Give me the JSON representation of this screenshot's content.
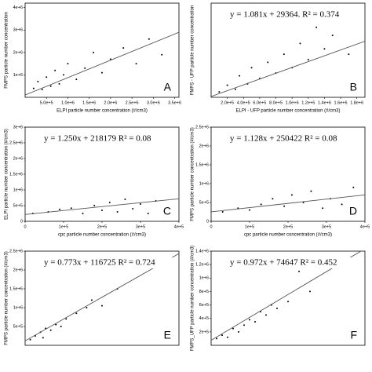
{
  "chart_data": [
    {
      "type": "scatter",
      "annotation": "A",
      "xlabel": "ELPI particle number concentration (#/cm3)",
      "ylabel": "FMPS particle number concentration",
      "x": [
        200000,
        300000,
        400000,
        500000,
        600000,
        700000,
        800000,
        900000,
        1000000,
        1200000,
        1400000,
        1600000,
        1800000,
        2000000,
        2300000,
        2600000,
        2900000,
        3200000
      ],
      "y": [
        400000,
        700000,
        350000,
        900000,
        500000,
        1200000,
        600000,
        1000000,
        1500000,
        800000,
        1300000,
        2000000,
        1100000,
        1700000,
        2200000,
        1500000,
        2600000,
        1900000
      ],
      "trend_x": [
        0,
        3600000
      ],
      "trend_y": [
        100000,
        2900000
      ],
      "xlim": [
        0,
        3600000
      ],
      "ylim": [
        0,
        4200000
      ],
      "xticks": [
        {
          "value": 500000,
          "label": "5.0e+5"
        },
        {
          "value": 1000000,
          "label": "1.0e+6"
        },
        {
          "value": 1500000,
          "label": "1.5e+6"
        },
        {
          "value": 2000000,
          "label": "2.0e+6"
        },
        {
          "value": 2500000,
          "label": "2.5e+6"
        },
        {
          "value": 3000000,
          "label": "3.0e+6"
        },
        {
          "value": 3500000,
          "label": "3.5e+6"
        }
      ],
      "yticks": [
        {
          "value": 1000000,
          "label": "1e+6"
        },
        {
          "value": 2000000,
          "label": "2e+6"
        },
        {
          "value": 3000000,
          "label": "3e+6"
        },
        {
          "value": 4000000,
          "label": "4e+6"
        }
      ]
    },
    {
      "type": "scatter",
      "annotation": "B",
      "equation": "y = 1.081x + 29364. R² = 0.374",
      "xlabel": "ELPI - UFP particle number concentration (#/cm3)",
      "ylabel": "FMPS - UFP particle number concentration",
      "x": [
        100000,
        200000,
        300000,
        350000,
        450000,
        500000,
        600000,
        700000,
        800000,
        900000,
        1000000,
        1100000,
        1200000,
        1300000,
        1400000,
        1500000,
        1700000
      ],
      "y": [
        200000,
        450000,
        300000,
        800000,
        500000,
        1100000,
        700000,
        1300000,
        900000,
        1600000,
        1100000,
        2000000,
        1400000,
        2600000,
        1800000,
        2300000,
        1600000
      ],
      "trend_x": [
        0,
        1900000
      ],
      "trend_y": [
        29364,
        2083264
      ],
      "xlim": [
        0,
        1900000
      ],
      "ylim": [
        0,
        3500000
      ],
      "xticks": [
        {
          "value": 200000,
          "label": "2.0e+5"
        },
        {
          "value": 400000,
          "label": "4.0e+5"
        },
        {
          "value": 600000,
          "label": "6.0e+5"
        },
        {
          "value": 800000,
          "label": "8.0e+5"
        },
        {
          "value": 1000000,
          "label": "1.0e+6"
        },
        {
          "value": 1200000,
          "label": "1.2e+6"
        },
        {
          "value": 1400000,
          "label": "1.4e+6"
        },
        {
          "value": 1600000,
          "label": "1.6e+6"
        },
        {
          "value": 1800000,
          "label": "1.8e+6"
        }
      ]
    },
    {
      "type": "scatter",
      "annotation": "C",
      "equation": "y = 1.250x + 218179  R² = 0.08",
      "xlabel": "cpc particle number concentration (#/cm3)",
      "ylabel": "ELPI particle number concentration (#/cm3)",
      "x": [
        20000,
        60000,
        90000,
        120000,
        150000,
        180000,
        200000,
        220000,
        240000,
        260000,
        280000,
        300000,
        320000,
        340000
      ],
      "y": [
        250000,
        300000,
        380000,
        420000,
        250000,
        500000,
        350000,
        600000,
        300000,
        700000,
        400000,
        550000,
        250000,
        650000
      ],
      "trend_x": [
        0,
        400000
      ],
      "trend_y": [
        218179,
        718179
      ],
      "xlim": [
        0,
        400000
      ],
      "ylim": [
        0,
        3000000
      ],
      "xticks": [
        0,
        {
          "value": 100000,
          "label": "1e+5"
        },
        {
          "value": 200000,
          "label": "2e+5"
        },
        {
          "value": 300000,
          "label": "3e+5"
        },
        {
          "value": 400000,
          "label": "4e+5"
        }
      ],
      "yticks": [
        0,
        {
          "value": 500000,
          "label": "5e+5"
        },
        {
          "value": 1000000,
          "label": "1e+6"
        },
        {
          "value": 1500000,
          "label": "1.5e+6"
        },
        {
          "value": 2000000,
          "label": "2e+6"
        },
        {
          "value": 2500000,
          "label": "2.5e+6"
        },
        {
          "value": 3000000,
          "label": "3e+6"
        }
      ]
    },
    {
      "type": "scatter",
      "annotation": "D",
      "equation": "y = 1.128x + 250422  R² = 0.08",
      "xlabel": "cpc particle number concentration (#/cm3)",
      "ylabel": "FMPS particle number concentration (#/cm3)",
      "x": [
        30000,
        70000,
        100000,
        130000,
        160000,
        190000,
        210000,
        240000,
        260000,
        290000,
        310000,
        340000,
        370000
      ],
      "y": [
        250000,
        350000,
        300000,
        450000,
        600000,
        400000,
        700000,
        500000,
        800000,
        350000,
        600000,
        450000,
        900000
      ],
      "trend_x": [
        0,
        400000
      ],
      "trend_y": [
        250422,
        701622
      ],
      "xlim": [
        0,
        400000
      ],
      "ylim": [
        0,
        2500000
      ],
      "xticks": [
        0,
        {
          "value": 100000,
          "label": "1e+5"
        },
        {
          "value": 200000,
          "label": "2e+5"
        },
        {
          "value": 300000,
          "label": "3e+5"
        },
        {
          "value": 400000,
          "label": "4e+5"
        }
      ],
      "yticks": [
        0,
        {
          "value": 500000,
          "label": "5e+5"
        },
        {
          "value": 1000000,
          "label": "1e+6"
        },
        {
          "value": 1500000,
          "label": "1.5e+6"
        },
        {
          "value": 2000000,
          "label": "2e+6"
        },
        {
          "value": 2500000,
          "label": "2.5e+6"
        }
      ]
    },
    {
      "type": "scatter",
      "annotation": "E",
      "equation": "y = 0.773x + 116725  R² = 0.724",
      "ylabel": "FMPS particle number concentration (#/cm3)",
      "x": [
        100000,
        200000,
        300000,
        350000,
        400000,
        500000,
        600000,
        700000,
        800000,
        1000000,
        1200000,
        1300000,
        1500000,
        1800000
      ],
      "y": [
        150000,
        250000,
        350000,
        200000,
        450000,
        400000,
        550000,
        500000,
        700000,
        850000,
        1000000,
        1200000,
        1050000,
        1500000
      ],
      "trend_x": [
        0,
        3000000
      ],
      "trend_y": [
        116725,
        2435725
      ],
      "xlim": [
        0,
        3000000
      ],
      "ylim": [
        0,
        2500000
      ],
      "yticks": [
        {
          "value": 500000,
          "label": "5e+5"
        },
        {
          "value": 1000000,
          "label": "1e+6"
        },
        {
          "value": 1500000,
          "label": "1.5e+6"
        },
        {
          "value": 2000000,
          "label": "2e+6"
        },
        {
          "value": 2500000,
          "label": "2.5e+6"
        }
      ]
    },
    {
      "type": "scatter",
      "annotation": "F",
      "equation": "y = 0.972x + 74647  R² = 0.452",
      "ylabel": "FMPS_UFP particle number concentration (#/cm3)",
      "x": [
        50000,
        100000,
        150000,
        200000,
        250000,
        300000,
        350000,
        400000,
        450000,
        500000,
        550000,
        600000,
        700000,
        800000,
        900000
      ],
      "y": [
        100000,
        150000,
        120000,
        250000,
        200000,
        300000,
        380000,
        350000,
        500000,
        450000,
        600000,
        550000,
        650000,
        1100000,
        800000
      ],
      "trend_x": [
        0,
        1400000
      ],
      "trend_y": [
        74647,
        1435447
      ],
      "xlim": [
        0,
        1400000
      ],
      "ylim": [
        0,
        1400000
      ],
      "yticks": [
        {
          "value": 200000,
          "label": "2e+5"
        },
        {
          "value": 400000,
          "label": "4e+5"
        },
        {
          "value": 600000,
          "label": "6e+5"
        },
        {
          "value": 800000,
          "label": "8e+5"
        },
        {
          "value": 1000000,
          "label": "1e+6"
        },
        {
          "value": 1200000,
          "label": "1.2e+6"
        },
        {
          "value": 1400000,
          "label": "1.4e+6"
        }
      ]
    }
  ]
}
